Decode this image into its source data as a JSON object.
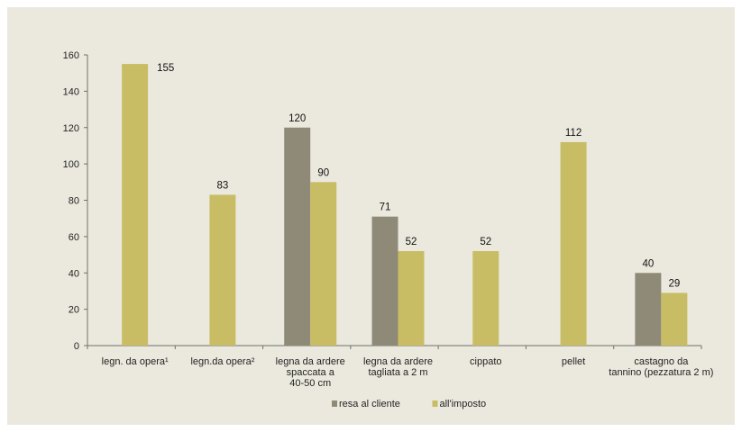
{
  "chart_data": {
    "type": "bar",
    "categories": [
      [
        "legn. da opera¹"
      ],
      [
        "legn.da opera²"
      ],
      [
        "legna  da ardere",
        "spaccata a",
        "40-50 cm"
      ],
      [
        "legna da ardere",
        "tagliata a 2 m"
      ],
      [
        "cippato"
      ],
      [
        "pellet"
      ],
      [
        "castagno da",
        "tannino (pezzatura 2 m)"
      ]
    ],
    "series": [
      {
        "name": "resa al cliente",
        "color": "#8f8a77",
        "values": [
          null,
          null,
          120,
          71,
          null,
          null,
          40
        ]
      },
      {
        "name": "all'imposto",
        "color": "#c8bd64",
        "values": [
          155,
          83,
          90,
          52,
          52,
          112,
          29
        ]
      }
    ],
    "ylim": [
      0,
      160
    ],
    "yticks": [
      0,
      20,
      40,
      60,
      80,
      100,
      120,
      140,
      160
    ],
    "title": "",
    "xlabel": "",
    "ylabel": "",
    "grid": false,
    "legend_position": "bottom"
  }
}
